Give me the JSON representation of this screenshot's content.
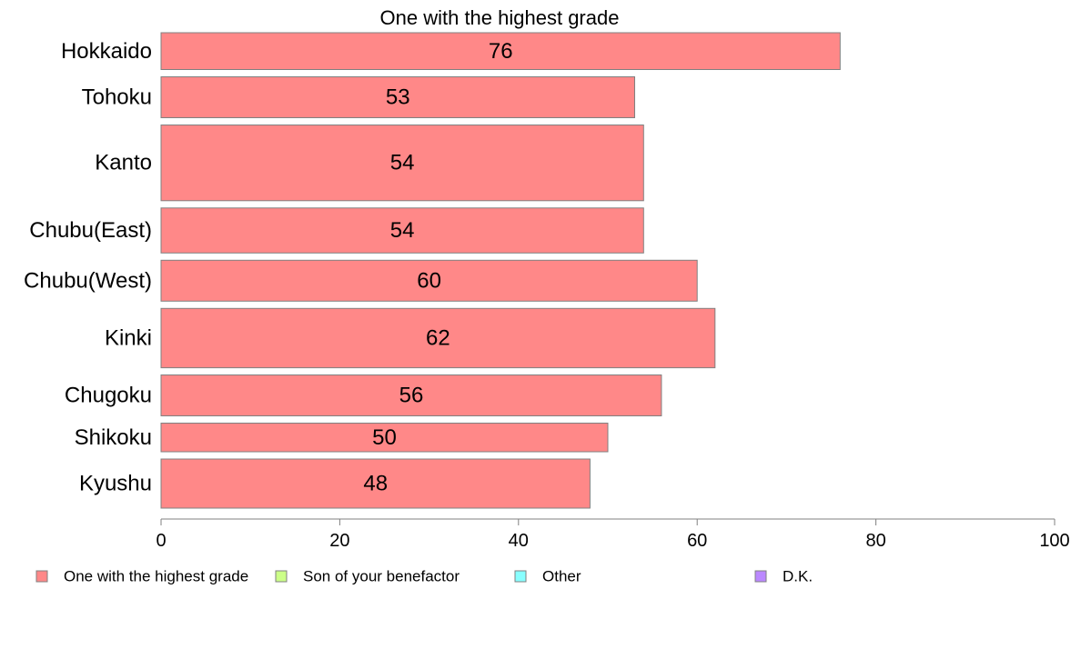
{
  "chart_data": {
    "type": "bar",
    "orientation": "horizontal",
    "title": "One with the highest grade",
    "categories": [
      "Hokkaido",
      "Tohoku",
      "Kanto",
      "Chubu(East)",
      "Chubu(West)",
      "Kinki",
      "Chugoku",
      "Shikoku",
      "Kyushu"
    ],
    "series": [
      {
        "name": "One with the highest grade",
        "color": "#ff8888",
        "values": [
          76,
          53,
          54,
          54,
          60,
          62,
          56,
          50,
          48
        ],
        "labels": [
          "76",
          "53",
          "54",
          "54",
          "60",
          "62",
          "56",
          "50",
          "48"
        ]
      }
    ],
    "category_weights": [
      0.9,
      1.0,
      1.85,
      1.1,
      1.0,
      1.45,
      1.0,
      0.7,
      1.2
    ],
    "xlim": [
      0,
      100
    ],
    "xticks": [
      0,
      20,
      40,
      60,
      80,
      100
    ],
    "xtick_labels": [
      "0",
      "20",
      "40",
      "60",
      "80",
      "100"
    ],
    "xlabel": "",
    "ylabel": "",
    "grid": false,
    "legend": {
      "placement": "bottom",
      "items": [
        {
          "label": "One with the highest grade",
          "color": "#ff8888"
        },
        {
          "label": "Son of your benefactor",
          "color": "#ccff88"
        },
        {
          "label": "Other",
          "color": "#88ffff"
        },
        {
          "label": "D.K.",
          "color": "#bb88ff"
        }
      ]
    },
    "bar_edge_color": "#808080",
    "axis_color": "#808080"
  }
}
